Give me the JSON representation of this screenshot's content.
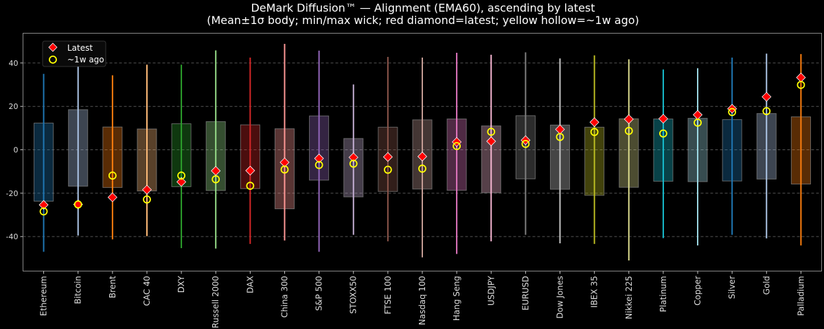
{
  "chart_data": {
    "type": "box",
    "title": "DeMark Diffusion™ — Alignment (EMA60), ascending by latest",
    "subtitle": "(Mean±1σ body; min/max wick; red diamond=latest; yellow hollow=~1w ago)",
    "xlabel": "",
    "ylabel": "",
    "ylim": [
      -55.9,
      53.7
    ],
    "yticks": [
      -40,
      -20,
      0,
      20,
      40
    ],
    "grid": "horizontal dashed",
    "legend": {
      "placement": "top-left",
      "entries": [
        "Latest",
        "~1w ago"
      ]
    },
    "marker_colors": {
      "latest": "#ff0000",
      "week_ago": "#ffff00"
    },
    "categories": [
      "Ethereum",
      "Bitcoin",
      "Brent",
      "CAC 40",
      "DXY",
      "Russell 2000",
      "DAX",
      "China 300",
      "S&P 500",
      "STOXX50",
      "FTSE 100",
      "Nasdaq 100",
      "Hang Seng",
      "USDJPY",
      "EURUSD",
      "Dow Jones",
      "IBEX 35",
      "Nikkei 225",
      "Platinum",
      "Copper",
      "Silver",
      "Gold",
      "Palladium"
    ],
    "colors": [
      "#1f77b4",
      "#aec7e8",
      "#ff7f0e",
      "#ffbb78",
      "#2ca02c",
      "#98df8a",
      "#d62728",
      "#ff9896",
      "#9467bd",
      "#c5b0d5",
      "#8c564b",
      "#c49c94",
      "#e377c2",
      "#f7b6d2",
      "#7f7f7f",
      "#c7c7c7",
      "#bcbd22",
      "#dbdb8d",
      "#17becf",
      "#9edae5",
      "#1f77b4",
      "#aec7e8",
      "#ff7f0e"
    ],
    "body_high": [
      12.3,
      18.5,
      10.5,
      9.6,
      12.0,
      13.0,
      11.5,
      9.7,
      15.6,
      5.2,
      10.4,
      13.8,
      14.2,
      11.0,
      15.7,
      11.4,
      10.4,
      14.3,
      14.2,
      14.5,
      13.9,
      16.7,
      15.2
    ],
    "body_low": [
      -23.7,
      -16.8,
      -17.4,
      -19.0,
      -17.0,
      -18.8,
      -17.9,
      -27.2,
      -14.0,
      -21.7,
      -19.2,
      -18.1,
      -18.7,
      -19.8,
      -13.4,
      -18.2,
      -21.0,
      -17.3,
      -14.5,
      -14.7,
      -14.4,
      -13.5,
      -15.8
    ],
    "wick_max": [
      35.0,
      47.5,
      34.3,
      39.2,
      39.2,
      45.8,
      42.5,
      48.8,
      45.7,
      30.1,
      42.8,
      42.5,
      44.7,
      43.8,
      44.9,
      42.1,
      43.5,
      41.7,
      37.0,
      37.6,
      42.5,
      44.3,
      44.1
    ],
    "wick_min": [
      -47.0,
      -39.5,
      -41.3,
      -39.8,
      -45.3,
      -45.5,
      -43.4,
      -41.8,
      -47.0,
      -39.2,
      -42.2,
      -49.6,
      -48.0,
      -42.2,
      -39.2,
      -43.1,
      -43.4,
      -51.0,
      -40.7,
      -44.1,
      -39.2,
      -40.8,
      -44.1
    ],
    "latest": [
      -25.4,
      -25.2,
      -21.9,
      -18.4,
      -14.8,
      -9.7,
      -9.6,
      -5.8,
      -4.0,
      -3.5,
      -3.3,
      -3.1,
      3.6,
      3.9,
      4.4,
      9.4,
      12.7,
      14.1,
      14.3,
      16.1,
      18.9,
      24.4,
      33.3
    ],
    "week_ago": [
      -28.4,
      -25.2,
      -11.9,
      -22.9,
      -11.9,
      -13.6,
      -16.6,
      -9.1,
      -7.0,
      -6.4,
      -9.2,
      -8.7,
      1.7,
      8.3,
      2.7,
      5.9,
      8.2,
      8.7,
      7.5,
      12.5,
      17.4,
      17.8,
      29.9
    ]
  }
}
